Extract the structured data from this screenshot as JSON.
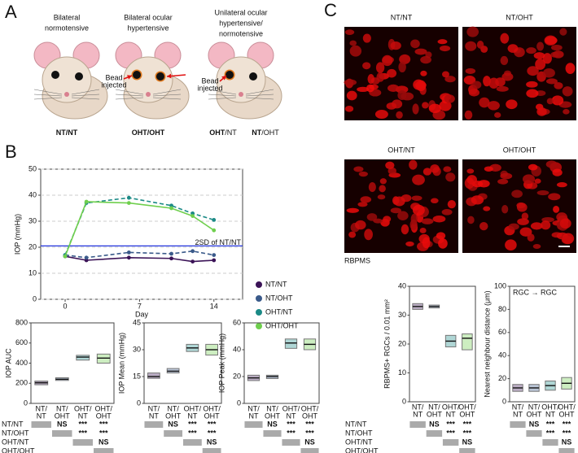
{
  "panel_a": {
    "letter": "A",
    "bead_label": [
      "Bead",
      "injected"
    ],
    "mice": [
      {
        "title": [
          "Bilateral",
          "normotensive"
        ],
        "labels": [
          {
            "bold": "NT/NT"
          }
        ]
      },
      {
        "title": [
          "Bilateral ocular",
          "hypertensive"
        ],
        "labels": [
          {
            "bold": "OHT/OHT"
          }
        ]
      },
      {
        "title": [
          "Unilateral ocular",
          "hypertensive/",
          "normotensive"
        ],
        "labels": [
          {
            "bold": "OHT",
            "plain": "/NT"
          },
          {
            "bold": "NT",
            "plain": "/OHT"
          }
        ]
      }
    ]
  },
  "panel_b": {
    "letter": "B"
  },
  "panel_c": {
    "letter": "C",
    "images": [
      "NT/NT",
      "NT/OHT",
      "OHT/NT",
      "OHT/OHT"
    ],
    "stain": "RBPMS"
  },
  "significance_rows": [
    "NT/NT",
    "NT/OHT",
    "OHT/NT",
    "OHT/OHT"
  ],
  "chart_data": [
    {
      "type": "line",
      "xlabel": "Day",
      "ylabel": "IOP (mmHg)",
      "x": [
        0,
        2,
        6,
        10,
        12,
        14
      ],
      "xlim": [
        -2.3,
        16.7
      ],
      "xticks": [
        0,
        7,
        14
      ],
      "ylim": [
        0,
        50
      ],
      "yticks": [
        0,
        10,
        20,
        30,
        40,
        50
      ],
      "grid": true,
      "legend": "right",
      "threshold": {
        "value": 20.5,
        "label": "2SD of NT/NT",
        "color": "#2233dd"
      },
      "series": [
        {
          "name": "NT/NT",
          "color": "#3b1357",
          "dashed": false,
          "values": [
            16.5,
            15,
            16,
            15.7,
            14.5,
            15
          ]
        },
        {
          "name": "NT/OHT",
          "color": "#3a5a8a",
          "dashed": true,
          "values": [
            17,
            16,
            18,
            17.5,
            18.5,
            17
          ]
        },
        {
          "name": "OHT/NT",
          "color": "#1b8a86",
          "dashed": true,
          "values": [
            17,
            37,
            39,
            36,
            33,
            30.5
          ]
        },
        {
          "name": "OHT/OHT",
          "color": "#6fcf4d",
          "dashed": false,
          "values": [
            16.5,
            37.5,
            37,
            35,
            32,
            26.5
          ]
        }
      ]
    },
    {
      "type": "box",
      "ylabel": "IOP AUC",
      "ylim": [
        0,
        800
      ],
      "yticks": [
        0,
        200,
        400,
        600,
        800
      ],
      "categories": [
        [
          "NT/",
          "NT"
        ],
        [
          "NT/",
          "OHT"
        ],
        [
          "OHT/",
          "NT"
        ],
        [
          "OHT/",
          "OHT"
        ]
      ],
      "colors": [
        "#3b1357",
        "#3a5a8a",
        "#1b8a86",
        "#6fcf4d"
      ],
      "q1": [
        185,
        228,
        430,
        400
      ],
      "median": [
        205,
        240,
        460,
        450
      ],
      "q3": [
        222,
        255,
        478,
        490
      ],
      "significance": [
        [
          "NS",
          "***",
          "***"
        ],
        [
          "***",
          "***"
        ],
        [
          "NS"
        ]
      ]
    },
    {
      "type": "box",
      "ylabel": "IOP Mean (mmHg)",
      "ylim": [
        0,
        45
      ],
      "yticks": [
        0,
        15,
        30,
        45
      ],
      "categories": [
        [
          "NT/",
          "NT"
        ],
        [
          "NT/",
          "OHT"
        ],
        [
          "OHT/",
          "NT"
        ],
        [
          "OHT/",
          "OHT"
        ]
      ],
      "colors": [
        "#3b1357",
        "#3a5a8a",
        "#1b8a86",
        "#6fcf4d"
      ],
      "q1": [
        14,
        17,
        29,
        27
      ],
      "median": [
        15,
        18,
        31,
        30
      ],
      "q3": [
        17,
        19.5,
        33,
        33
      ],
      "significance": [
        [
          "NS",
          "***",
          "***"
        ],
        [
          "***",
          "***"
        ],
        [
          "NS"
        ]
      ]
    },
    {
      "type": "box",
      "ylabel": "IOP Peak (mmHg)",
      "ylim": [
        0,
        60
      ],
      "yticks": [
        0,
        20,
        40,
        60
      ],
      "categories": [
        [
          "NT/",
          "NT"
        ],
        [
          "NT/",
          "OHT"
        ],
        [
          "OHT/",
          "NT"
        ],
        [
          "OHT/",
          "OHT"
        ]
      ],
      "colors": [
        "#3b1357",
        "#3a5a8a",
        "#1b8a86",
        "#6fcf4d"
      ],
      "q1": [
        17,
        18.5,
        41,
        40
      ],
      "median": [
        19,
        20,
        45,
        44
      ],
      "q3": [
        21,
        21,
        48,
        48
      ],
      "significance": [
        [
          "NS",
          "***",
          "***"
        ],
        [
          "***",
          "***"
        ],
        [
          "NS"
        ]
      ]
    },
    {
      "type": "box",
      "ylabel": "RBPMS+ RGCs / 0.01 mm²",
      "ylim": [
        0,
        40
      ],
      "yticks": [
        0,
        10,
        20,
        30,
        40
      ],
      "categories": [
        [
          "NT/",
          "NT"
        ],
        [
          "NT/",
          "OHT"
        ],
        [
          "OHT/",
          "NT"
        ],
        [
          "OHT/",
          "OHT"
        ]
      ],
      "colors": [
        "#3b1357",
        "#3a5a8a",
        "#1b8a86",
        "#6fcf4d"
      ],
      "q1": [
        32,
        32.5,
        19,
        18
      ],
      "median": [
        33,
        33,
        21,
        22
      ],
      "q3": [
        34,
        33.5,
        23,
        23.5
      ],
      "significance": [
        [
          "NS",
          "***",
          "***"
        ],
        [
          "***",
          "***"
        ],
        [
          "NS"
        ]
      ]
    },
    {
      "type": "box",
      "ylabel": "Nearest neighbour distance (μm)",
      "annotation": "RGC → RGC",
      "ylim": [
        0,
        100
      ],
      "yticks": [
        0,
        20,
        40,
        60,
        80,
        100
      ],
      "categories": [
        [
          "NT/",
          "NT"
        ],
        [
          "NT/",
          "OHT"
        ],
        [
          "OHT/",
          "NT"
        ],
        [
          "OHT/",
          "OHT"
        ]
      ],
      "colors": [
        "#3b1357",
        "#3a5a8a",
        "#1b8a86",
        "#6fcf4d"
      ],
      "q1": [
        9,
        9,
        10,
        11
      ],
      "median": [
        12,
        12,
        14,
        16
      ],
      "q3": [
        15,
        15,
        18,
        21
      ],
      "significance": [
        [
          "NS",
          "***",
          "***"
        ],
        [
          "***",
          "***"
        ],
        [
          "NS"
        ]
      ]
    }
  ]
}
